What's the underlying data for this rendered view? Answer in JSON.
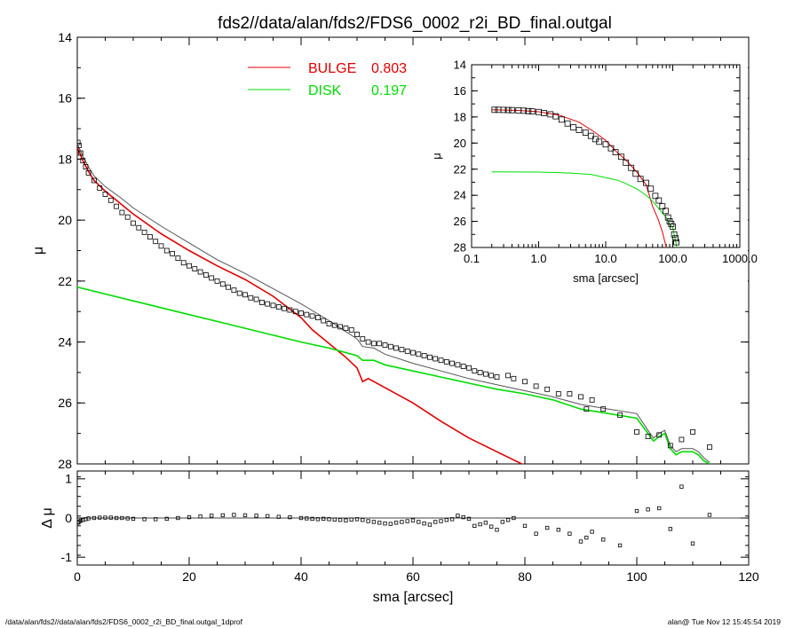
{
  "title": "fds2//data/alan/fds2/FDS6_0002_r2i_BD_final.outgal",
  "footer_left": "/data/alan/fds2//data/alan/fds2/FDS6_0002_r2i_BD_final.outgal_1dprof",
  "footer_right": "alan@  Tue Nov 12 15:45:54 2019",
  "colors": {
    "bulge": "#e00000",
    "disk": "#00dd00",
    "total": "#444444",
    "data": "#000000"
  },
  "chart_data": [
    {
      "id": "main",
      "type": "scatter",
      "xlabel": "",
      "ylabel": "μ",
      "xlim": [
        0,
        120
      ],
      "ylim": [
        28,
        14
      ],
      "xticks": [
        0,
        20,
        40,
        60,
        80,
        100,
        120
      ],
      "yticks": [
        14,
        16,
        18,
        20,
        22,
        24,
        26,
        28
      ],
      "legend": [
        {
          "label": "BULGE",
          "value": "0.803",
          "color": "#e00000"
        },
        {
          "label": "DISK",
          "value": "0.197",
          "color": "#00dd00"
        }
      ],
      "legend_position": "top-center",
      "series": [
        {
          "name": "BULGE",
          "type": "line",
          "color": "#e00000",
          "x": [
            0,
            1,
            2,
            3,
            5,
            8,
            10,
            15,
            20,
            25,
            30,
            35,
            40,
            42,
            45,
            48,
            50,
            51,
            52,
            53,
            55,
            60,
            65,
            70,
            75,
            80
          ],
          "y": [
            17.6,
            18.05,
            18.4,
            18.7,
            19.05,
            19.5,
            19.8,
            20.45,
            21.0,
            21.5,
            21.95,
            22.5,
            23.2,
            23.6,
            24.05,
            24.5,
            24.85,
            25.3,
            25.2,
            25.3,
            25.5,
            26.0,
            26.6,
            27.15,
            27.6,
            28.05
          ]
        },
        {
          "name": "DISK",
          "type": "line",
          "color": "#00dd00",
          "x": [
            0,
            10,
            20,
            30,
            40,
            45,
            50,
            51,
            53,
            55,
            60,
            65,
            70,
            75,
            80,
            85,
            90,
            95,
            100,
            102,
            103,
            104,
            105,
            106,
            107,
            108,
            110,
            111,
            112,
            113
          ],
          "y": [
            22.2,
            22.65,
            23.1,
            23.55,
            24.0,
            24.2,
            24.45,
            24.6,
            24.6,
            24.75,
            24.95,
            25.15,
            25.35,
            25.55,
            25.7,
            25.9,
            26.2,
            26.35,
            26.5,
            27.0,
            27.25,
            27.1,
            27.0,
            27.5,
            27.7,
            27.6,
            27.6,
            27.7,
            27.9,
            28.0
          ]
        },
        {
          "name": "TOTAL",
          "type": "line",
          "color": "#555555",
          "x": [
            0,
            1,
            2,
            3,
            5,
            8,
            10,
            15,
            20,
            25,
            30,
            35,
            40,
            45,
            50,
            51,
            53,
            55,
            60,
            65,
            70,
            75,
            80,
            85,
            90,
            95,
            100,
            102,
            103,
            104,
            105,
            106,
            107,
            108,
            110,
            111,
            112,
            113
          ],
          "y": [
            17.5,
            17.9,
            18.25,
            18.55,
            18.9,
            19.3,
            19.6,
            20.2,
            20.75,
            21.3,
            21.75,
            22.25,
            22.75,
            23.3,
            23.9,
            24.15,
            24.2,
            24.4,
            24.7,
            24.95,
            25.2,
            25.4,
            25.6,
            25.8,
            26.05,
            26.2,
            26.35,
            26.9,
            27.15,
            27.0,
            26.9,
            27.4,
            27.6,
            27.5,
            27.5,
            27.6,
            27.8,
            27.95
          ]
        },
        {
          "name": "data",
          "type": "scatter",
          "color": "#000000",
          "x": [
            0.1,
            0.3,
            0.6,
            1,
            1.5,
            2,
            3,
            4,
            5,
            6,
            7,
            8,
            9,
            10,
            11,
            12,
            13,
            14,
            15,
            16,
            17,
            18,
            19,
            20,
            21,
            22,
            23,
            24,
            25,
            26,
            27,
            28,
            29,
            30,
            31,
            32,
            33,
            34,
            35,
            36,
            37,
            38,
            39,
            40,
            41,
            42,
            43,
            44,
            45,
            46,
            47,
            48,
            49,
            50,
            51,
            52,
            53,
            54,
            55,
            56,
            57,
            58,
            59,
            60,
            61,
            62,
            63,
            64,
            65,
            66,
            67,
            68,
            69,
            70,
            71,
            72,
            73,
            74,
            75,
            77,
            78,
            80,
            82,
            84,
            86,
            88,
            90,
            91,
            92,
            94,
            97,
            100,
            102,
            104,
            106,
            108,
            110,
            113
          ],
          "y": [
            17.45,
            17.55,
            17.8,
            18.05,
            18.25,
            18.45,
            18.7,
            18.95,
            19.15,
            19.35,
            19.55,
            19.75,
            19.9,
            20.1,
            20.25,
            20.4,
            20.55,
            20.7,
            20.85,
            21.0,
            21.1,
            21.25,
            21.4,
            21.5,
            21.6,
            21.7,
            21.8,
            21.9,
            22.0,
            22.1,
            22.2,
            22.3,
            22.4,
            22.45,
            22.55,
            22.6,
            22.7,
            22.75,
            22.8,
            22.85,
            22.9,
            22.95,
            23.0,
            23.05,
            23.1,
            23.15,
            23.2,
            23.3,
            23.4,
            23.45,
            23.5,
            23.55,
            23.6,
            23.75,
            23.9,
            24.0,
            24.05,
            24.05,
            24.1,
            24.15,
            24.2,
            24.25,
            24.3,
            24.35,
            24.4,
            24.45,
            24.5,
            24.55,
            24.6,
            24.65,
            24.7,
            24.75,
            24.8,
            24.85,
            24.95,
            25.0,
            25.05,
            25.1,
            25.15,
            25.1,
            25.2,
            25.3,
            25.45,
            25.55,
            25.7,
            25.7,
            25.8,
            26.2,
            25.9,
            26.2,
            26.4,
            26.95,
            27.1,
            27.05,
            27.4,
            27.2,
            26.95,
            27.45
          ]
        }
      ]
    },
    {
      "id": "inset",
      "type": "scatter",
      "xscale": "log",
      "xlabel": "sma [arcsec]",
      "ylabel": "μ",
      "xlim": [
        0.1,
        1000
      ],
      "ylim": [
        28,
        14
      ],
      "xticks": [
        0.1,
        1,
        10,
        100,
        1000
      ],
      "xticklabels": [
        "0.1",
        "1.0",
        "10.0",
        "100.0",
        "1000.0"
      ],
      "yticks": [
        14,
        16,
        18,
        20,
        22,
        24,
        26,
        28
      ],
      "series": [
        {
          "name": "BULGE",
          "type": "line",
          "color": "#e00000",
          "x": [
            0.2,
            0.5,
            1,
            2,
            4,
            7,
            10,
            15,
            20,
            30,
            40,
            50,
            60,
            70,
            80
          ],
          "y": [
            17.45,
            17.5,
            17.6,
            17.85,
            18.4,
            19.2,
            19.8,
            20.75,
            21.3,
            22.3,
            23.2,
            24.85,
            25.8,
            26.8,
            28.0
          ]
        },
        {
          "name": "DISK",
          "type": "line",
          "color": "#00dd00",
          "x": [
            0.2,
            1,
            3,
            6,
            10,
            15,
            20,
            30,
            40,
            50,
            60,
            70,
            80,
            90,
            100,
            110,
            115
          ],
          "y": [
            22.2,
            22.22,
            22.3,
            22.4,
            22.65,
            22.85,
            23.1,
            23.55,
            24.0,
            24.45,
            24.95,
            25.35,
            25.7,
            26.2,
            26.5,
            27.5,
            28.0
          ]
        },
        {
          "name": "data",
          "type": "scatter",
          "color": "#000000",
          "x": [
            0.22,
            0.25,
            0.3,
            0.35,
            0.4,
            0.5,
            0.6,
            0.7,
            0.8,
            1.0,
            1.2,
            1.5,
            1.8,
            2.2,
            2.7,
            3.3,
            4,
            5,
            6,
            7,
            8,
            10,
            12,
            14,
            17,
            20,
            24,
            28,
            33,
            40,
            47,
            55,
            62,
            70,
            78,
            85,
            90,
            95,
            100,
            105,
            110,
            113
          ],
          "y": [
            17.45,
            17.45,
            17.46,
            17.47,
            17.48,
            17.5,
            17.52,
            17.55,
            17.57,
            17.62,
            17.7,
            17.8,
            17.95,
            18.2,
            18.5,
            18.8,
            19.0,
            19.2,
            19.45,
            19.7,
            19.9,
            20.1,
            20.4,
            20.7,
            21.05,
            21.5,
            21.9,
            22.35,
            22.75,
            23.05,
            23.5,
            24.05,
            24.4,
            24.85,
            25.2,
            25.7,
            26.0,
            26.2,
            26.4,
            27.0,
            27.3,
            27.6
          ]
        }
      ]
    },
    {
      "id": "residual",
      "type": "scatter",
      "xlabel": "sma [arcsec]",
      "ylabel": "Δ μ",
      "xlim": [
        0,
        120
      ],
      "ylim": [
        -1.2,
        1.2
      ],
      "xticks": [
        0,
        20,
        40,
        60,
        80,
        100,
        120
      ],
      "yticks": [
        -1,
        0,
        1
      ],
      "series": [
        {
          "name": "residual",
          "type": "scatter",
          "color": "#000000",
          "x": [
            0.1,
            0.3,
            0.6,
            1,
            1.5,
            2,
            3,
            4,
            5,
            6,
            7,
            8,
            9,
            10,
            12,
            14,
            16,
            18,
            20,
            22,
            24,
            26,
            28,
            30,
            32,
            34,
            36,
            38,
            40,
            41,
            42,
            43,
            44,
            45,
            46,
            47,
            48,
            49,
            50,
            51,
            52,
            53,
            54,
            55,
            56,
            57,
            58,
            59,
            60,
            61,
            62,
            63,
            64,
            65,
            66,
            67,
            68,
            69,
            70,
            71,
            72,
            73,
            74,
            75,
            76,
            77,
            78,
            80,
            82,
            84,
            86,
            88,
            90,
            91,
            92,
            94,
            97,
            100,
            102,
            104,
            106,
            108,
            110,
            113
          ],
          "y": [
            -0.12,
            -0.1,
            -0.07,
            -0.05,
            -0.03,
            -0.01,
            0.0,
            0.01,
            0.01,
            0.01,
            0.0,
            0.0,
            -0.01,
            -0.02,
            -0.03,
            -0.03,
            -0.02,
            0.0,
            0.02,
            0.04,
            0.06,
            0.07,
            0.08,
            0.07,
            0.06,
            0.05,
            0.03,
            0.02,
            0.0,
            -0.01,
            -0.02,
            -0.03,
            -0.02,
            -0.03,
            -0.04,
            -0.05,
            -0.06,
            -0.04,
            -0.03,
            -0.05,
            -0.08,
            -0.1,
            -0.12,
            -0.14,
            -0.15,
            -0.12,
            -0.1,
            -0.08,
            -0.06,
            -0.1,
            -0.14,
            -0.17,
            -0.1,
            -0.08,
            -0.05,
            -0.03,
            0.06,
            0.02,
            -0.02,
            -0.2,
            -0.16,
            -0.12,
            -0.22,
            -0.3,
            -0.1,
            -0.05,
            0.0,
            -0.2,
            -0.4,
            -0.25,
            -0.3,
            -0.4,
            -0.6,
            -0.5,
            -0.35,
            -0.55,
            -0.7,
            0.18,
            0.22,
            0.25,
            -0.28,
            0.8,
            -0.65,
            0.08
          ]
        }
      ]
    }
  ]
}
